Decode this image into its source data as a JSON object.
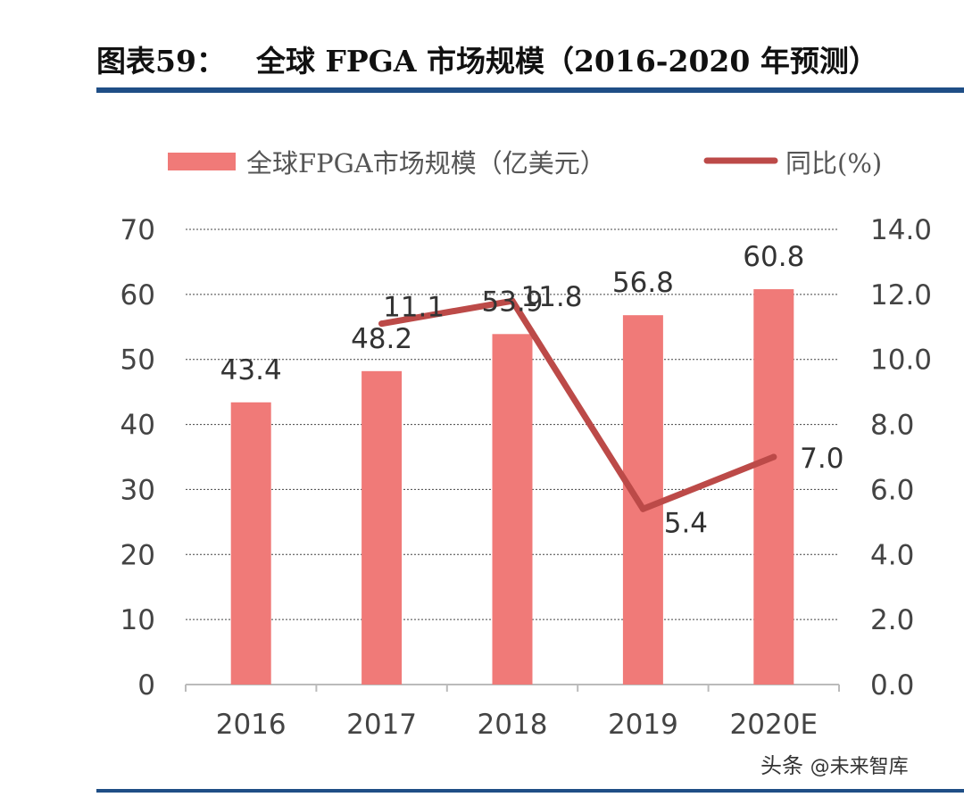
{
  "header": {
    "figure_number": "图表59：",
    "title": "全球 FPGA 市场规模（2016-2020 年预测）"
  },
  "watermark": {
    "platform": "头条",
    "account": "@未来智库"
  },
  "chart_data": {
    "type": "bar",
    "categories": [
      "2016",
      "2017",
      "2018",
      "2019",
      "2020E"
    ],
    "series": [
      {
        "name": "全球FPGA市场规模（亿美元）",
        "type": "bar",
        "axis": "left",
        "values": [
          43.4,
          48.2,
          53.9,
          56.8,
          60.8
        ],
        "labels": [
          "43.4",
          "48.2",
          "53.9",
          "56.8",
          "60.8"
        ],
        "color": "#f07a78"
      },
      {
        "name": "同比(%)",
        "type": "line",
        "axis": "right",
        "values": [
          null,
          11.1,
          11.8,
          5.4,
          7.0
        ],
        "labels": [
          "",
          "11.1",
          "11.8",
          "5.4",
          "7.0"
        ],
        "color": "#bc4a48"
      }
    ],
    "ylim_left": [
      0,
      70
    ],
    "yticks_left": [
      "0",
      "10",
      "20",
      "30",
      "40",
      "50",
      "60",
      "70"
    ],
    "ylim_right": [
      0,
      14
    ],
    "yticks_right": [
      "0.0",
      "2.0",
      "4.0",
      "6.0",
      "8.0",
      "10.0",
      "12.0",
      "14.0"
    ],
    "grid": true,
    "legend": "top"
  }
}
